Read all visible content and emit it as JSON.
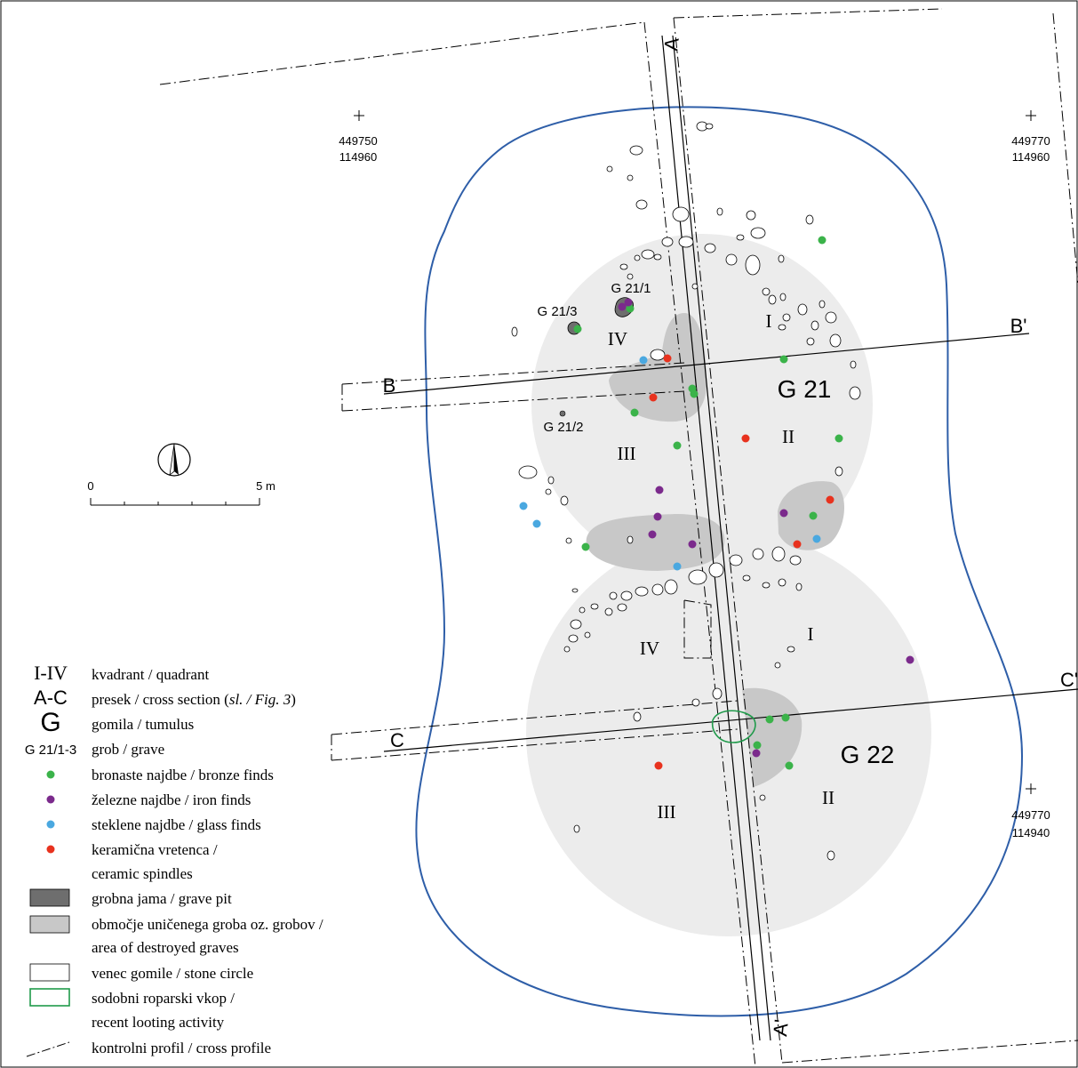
{
  "graves": {
    "g21_1": "G 21/1",
    "g21_2": "G 21/2",
    "g21_3": "G 21/3"
  },
  "tumuli": {
    "g21": "G 21",
    "g22": "G 22"
  },
  "quadrants": {
    "g21_i": "I",
    "g21_ii": "II",
    "g21_iii": "III",
    "g21_iv": "IV",
    "g22_i": "I",
    "g22_ii": "II",
    "g22_iii": "III",
    "g22_iv": "IV"
  },
  "sections": {
    "a": "A",
    "a_prime": "A'",
    "b": "B",
    "b_prime": "B'",
    "c": "C",
    "c_prime": "C'"
  },
  "coordinates": {
    "nw": {
      "x": "449750",
      "y": "114960"
    },
    "ne": {
      "x": "449770",
      "y": "114960"
    },
    "se": {
      "x": "449770",
      "y": "114940"
    }
  },
  "scale": {
    "zero": "0",
    "max": "5 m"
  },
  "legend": {
    "quadrant": {
      "symbol": "I-IV",
      "text": "kvadrant / quadrant"
    },
    "section": {
      "symbol": "A-C",
      "text": "presek / cross section (",
      "italic": "sl. / Fig. 3",
      "close": ")"
    },
    "tumulus": {
      "symbol": "G",
      "text": "gomila / tumulus"
    },
    "grave": {
      "symbol": "G 21/1-3",
      "text": "grob / grave"
    },
    "bronze": {
      "text": "bronaste najdbe / bronze finds"
    },
    "iron": {
      "text": "železne najdbe / iron finds"
    },
    "glass": {
      "text": "steklene najdbe / glass finds"
    },
    "ceramic": {
      "line1": "keramična vretenca /",
      "line2": "ceramic spindles"
    },
    "pit": {
      "text": "grobna jama / grave pit"
    },
    "destroyed": {
      "line1": "območje uničenega groba oz. grobov /",
      "line2": "area of destroyed graves"
    },
    "stone": {
      "text": "venec gomile / stone circle"
    },
    "looting": {
      "line1": "sodobni roparski vkop /",
      "line2": "recent looting activity"
    },
    "profile": {
      "text": "kontrolni profil / cross profile"
    }
  },
  "colors": {
    "bronze": "#3bb34a",
    "iron": "#7b2a8c",
    "glass": "#4aa8e0",
    "ceramic": "#e8321e",
    "tumulus_outline": "#2e5ea8",
    "destroyed_area": "#c8c8c8",
    "tumulus_area": "#ececec",
    "looting": "#1f9a4a",
    "grave_pit": "#6e6e6e"
  },
  "finds": {
    "bronze": [
      [
        925,
        270
      ],
      [
        882,
        404
      ],
      [
        779,
        437
      ],
      [
        781,
        443
      ],
      [
        714,
        464
      ],
      [
        762,
        501
      ],
      [
        944,
        493
      ],
      [
        915,
        580
      ],
      [
        659,
        615
      ],
      [
        866,
        809
      ],
      [
        884,
        807
      ],
      [
        852,
        838
      ],
      [
        888,
        861
      ],
      [
        650,
        370
      ],
      [
        709,
        347
      ]
    ],
    "iron": [
      [
        700,
        345
      ],
      [
        707,
        340
      ],
      [
        742,
        551
      ],
      [
        740,
        581
      ],
      [
        734,
        601
      ],
      [
        779,
        612
      ],
      [
        882,
        577
      ],
      [
        1024,
        742
      ],
      [
        851,
        847
      ]
    ],
    "glass": [
      [
        724,
        405
      ],
      [
        589,
        569
      ],
      [
        604,
        589
      ],
      [
        919,
        606
      ],
      [
        762,
        637
      ]
    ],
    "ceramic": [
      [
        751,
        403
      ],
      [
        735,
        447
      ],
      [
        839,
        493
      ],
      [
        934,
        562
      ],
      [
        897,
        612
      ],
      [
        741,
        861
      ]
    ]
  }
}
